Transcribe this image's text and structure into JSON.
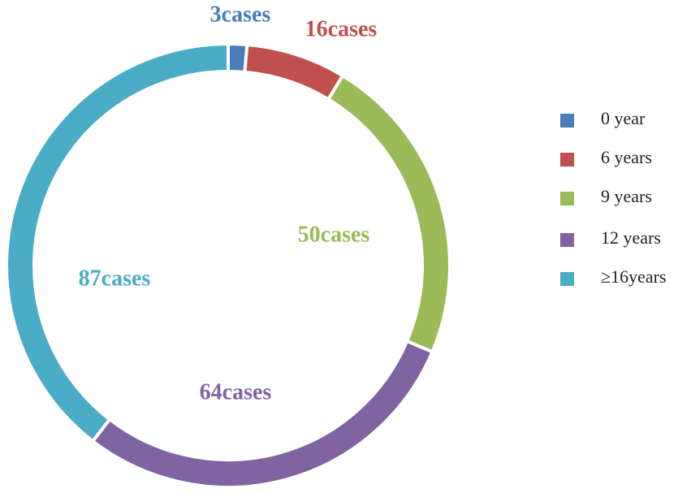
{
  "chart_data": {
    "type": "donut",
    "categories": [
      "0 year",
      "6 years",
      "9 years",
      "12 years",
      "≥16years"
    ],
    "values": [
      3,
      16,
      50,
      64,
      87
    ],
    "value_labels": [
      "3cases",
      "16cases",
      "50cases",
      "64cases",
      "87cases"
    ],
    "colors": [
      "#4a7ebb",
      "#c0504d",
      "#9bbb59",
      "#8064a2",
      "#4bacc6"
    ],
    "legend": "right"
  }
}
